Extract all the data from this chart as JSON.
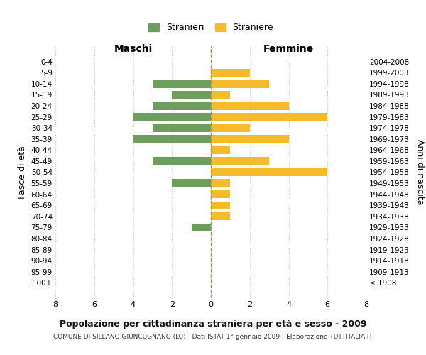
{
  "age_groups": [
    "0-4",
    "5-9",
    "10-14",
    "15-19",
    "20-24",
    "25-29",
    "30-34",
    "35-39",
    "40-44",
    "45-49",
    "50-54",
    "55-59",
    "60-64",
    "65-69",
    "70-74",
    "75-79",
    "80-84",
    "85-89",
    "90-94",
    "95-99",
    "100+"
  ],
  "birth_years": [
    "2004-2008",
    "1999-2003",
    "1994-1998",
    "1989-1993",
    "1984-1988",
    "1979-1983",
    "1974-1978",
    "1969-1973",
    "1964-1968",
    "1959-1963",
    "1954-1958",
    "1949-1953",
    "1944-1948",
    "1939-1943",
    "1934-1938",
    "1929-1933",
    "1924-1928",
    "1919-1923",
    "1914-1918",
    "1909-1913",
    "≤ 1908"
  ],
  "maschi": [
    0,
    0,
    3,
    2,
    3,
    4,
    3,
    4,
    0,
    3,
    0,
    2,
    0,
    0,
    0,
    1,
    0,
    0,
    0,
    0,
    0
  ],
  "femmine": [
    0,
    2,
    3,
    1,
    4,
    6,
    2,
    4,
    1,
    3,
    6,
    1,
    1,
    1,
    1,
    0,
    0,
    0,
    0,
    0,
    0
  ],
  "maschi_color": "#6d9e5e",
  "femmine_color": "#f5bb2b",
  "background_color": "#ffffff",
  "grid_color": "#cccccc",
  "title": "Popolazione per cittadinanza straniera per età e sesso - 2009",
  "subtitle": "COMUNE DI SILLANO GIUNCUGNANO (LU) - Dati ISTAT 1° gennaio 2009 - Elaborazione TUTTITALIA.IT",
  "xlabel_left": "Maschi",
  "xlabel_right": "Femmine",
  "ylabel_left": "Fasce di età",
  "ylabel_right": "Anni di nascita",
  "legend_maschi": "Stranieri",
  "legend_femmine": "Straniere",
  "xlim": 8
}
